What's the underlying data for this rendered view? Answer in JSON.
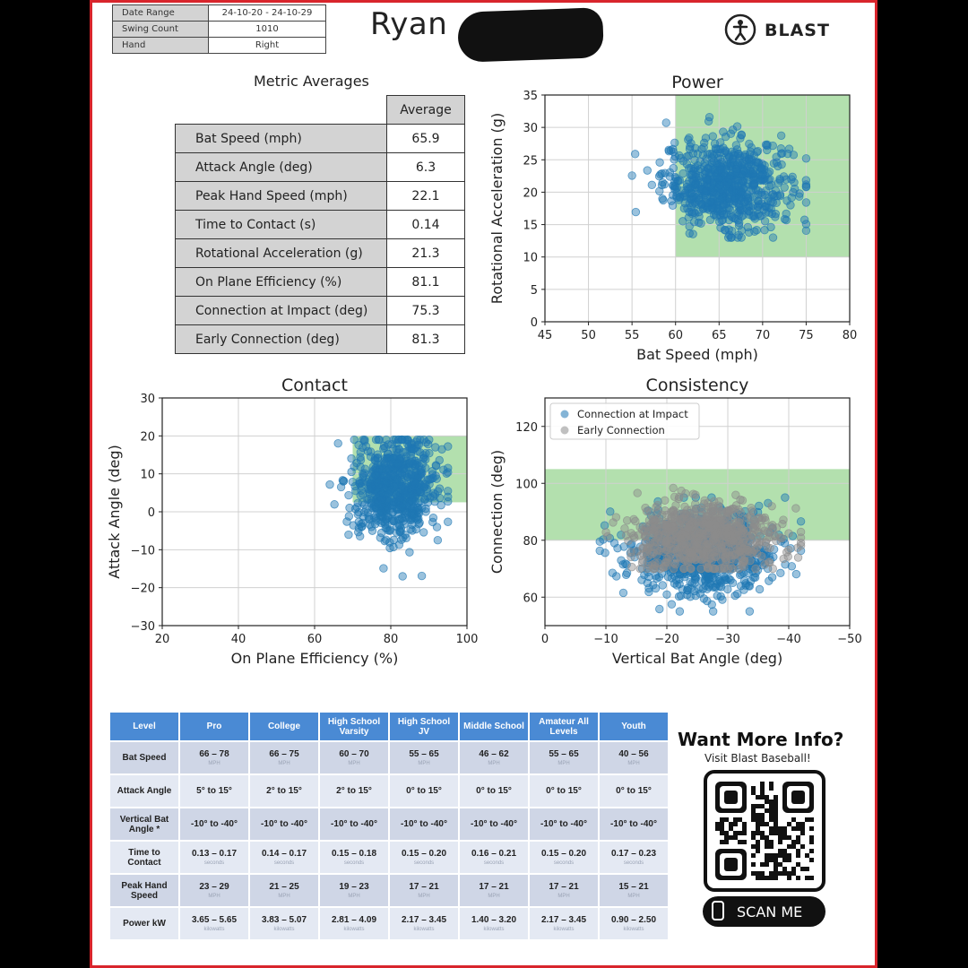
{
  "session": {
    "rows": [
      {
        "label": "Date Range",
        "value": "24-10-20 - 24-10-29"
      },
      {
        "label": "Swing Count",
        "value": "1010"
      },
      {
        "label": "Hand",
        "value": "Right"
      }
    ],
    "player_name": "Ryan",
    "brand": "BLAST"
  },
  "metrics": {
    "title": "Metric Averages",
    "column": "Average",
    "rows": [
      {
        "label": "Bat Speed (mph)",
        "value": "65.9"
      },
      {
        "label": "Attack Angle (deg)",
        "value": "6.3"
      },
      {
        "label": "Peak Hand Speed (mph)",
        "value": "22.1"
      },
      {
        "label": "Time to Contact (s)",
        "value": "0.14"
      },
      {
        "label": "Rotational Acceleration (g)",
        "value": "21.3"
      },
      {
        "label": "On Plane Efficiency (%)",
        "value": "81.1"
      },
      {
        "label": "Connection at Impact (deg)",
        "value": "75.3"
      },
      {
        "label": "Early Connection (deg)",
        "value": "81.3"
      }
    ]
  },
  "chart_data": [
    {
      "type": "scatter",
      "title": "Power",
      "xlabel": "Bat Speed (mph)",
      "ylabel": "Rotational Acceleration (g)",
      "xlim": [
        45,
        80
      ],
      "ylim": [
        0,
        35
      ],
      "xticks": [
        45,
        50,
        55,
        60,
        65,
        70,
        75,
        80
      ],
      "yticks": [
        0,
        5,
        10,
        15,
        20,
        25,
        30,
        35
      ],
      "grid": true,
      "target_zone": {
        "x": [
          60,
          80
        ],
        "y": [
          10,
          35
        ]
      },
      "series": [
        {
          "point_count": 1010,
          "center": {
            "x": 65.9,
            "y": 21.3
          },
          "x_range": [
            55,
            75
          ],
          "y_range": [
            13,
            32
          ]
        }
      ]
    },
    {
      "type": "scatter",
      "title": "Contact",
      "xlabel": "On Plane Efficiency (%)",
      "ylabel": "Attack Angle (deg)",
      "xlim": [
        20,
        100
      ],
      "ylim": [
        -30,
        30
      ],
      "xticks": [
        20,
        40,
        60,
        80,
        100
      ],
      "yticks": [
        -30,
        -20,
        -10,
        0,
        10,
        20,
        30
      ],
      "grid": true,
      "target_zone": {
        "x": [
          70,
          100
        ],
        "y": [
          2.5,
          20
        ]
      },
      "series": [
        {
          "point_count": 1010,
          "center": {
            "x": 81.1,
            "y": 6.3
          },
          "x_range": [
            64,
            95
          ],
          "y_range": [
            -17,
            19
          ]
        }
      ]
    },
    {
      "type": "scatter",
      "title": "Consistency",
      "xlabel": "Vertical Bat Angle (deg)",
      "ylabel": "Connection (deg)",
      "xlim": [
        0,
        -50
      ],
      "ylim": [
        50,
        130
      ],
      "xticks": [
        0,
        -10,
        -20,
        -30,
        -40,
        -50
      ],
      "yticks": [
        60,
        80,
        100,
        120
      ],
      "grid": true,
      "legend": "top-left",
      "target_zone": {
        "x": [
          0,
          -50
        ],
        "y": [
          80,
          105
        ]
      },
      "series": [
        {
          "name": "Connection at Impact",
          "color": "#1f77b4",
          "point_count": 1010,
          "center": {
            "x": -26,
            "y": 75.3
          },
          "x_range": [
            -9,
            -42
          ],
          "y_range": [
            55,
            95
          ]
        },
        {
          "name": "Early Connection",
          "color": "#8c8c8c",
          "point_count": 1010,
          "center": {
            "x": -26,
            "y": 81.3
          },
          "x_range": [
            -9,
            -42
          ],
          "y_range": [
            70,
            103
          ]
        }
      ]
    }
  ],
  "levels_table": {
    "columns": [
      "Level",
      "Pro",
      "College",
      "High School Varsity",
      "High School JV",
      "Middle School",
      "Amateur All Levels",
      "Youth"
    ],
    "rows": [
      {
        "label": "Bat Speed",
        "unit": "MPH",
        "values": [
          "66 – 78",
          "66 – 75",
          "60 – 70",
          "55 – 65",
          "46 – 62",
          "55 – 65",
          "40 – 56"
        ]
      },
      {
        "label": "Attack Angle",
        "unit": "",
        "values": [
          "5° to 15°",
          "2° to 15°",
          "2° to 15°",
          "0° to 15°",
          "0° to 15°",
          "0° to 15°",
          "0° to 15°"
        ]
      },
      {
        "label": "Vertical Bat Angle *",
        "unit": "",
        "values": [
          "-10° to -40°",
          "-10° to -40°",
          "-10° to -40°",
          "-10° to -40°",
          "-10° to -40°",
          "-10° to -40°",
          "-10° to -40°"
        ]
      },
      {
        "label": "Time to Contact",
        "unit": "seconds",
        "values": [
          "0.13 – 0.17",
          "0.14 – 0.17",
          "0.15 – 0.18",
          "0.15 – 0.20",
          "0.16 – 0.21",
          "0.15 – 0.20",
          "0.17 – 0.23"
        ]
      },
      {
        "label": "Peak Hand Speed",
        "unit": "MPH",
        "values": [
          "23 – 29",
          "21 – 25",
          "19 – 23",
          "17 – 21",
          "17 – 21",
          "17 – 21",
          "15 – 21"
        ]
      },
      {
        "label": "Power kW",
        "unit": "kilowatts",
        "values": [
          "3.65 – 5.65",
          "3.83 – 5.07",
          "2.81 – 4.09",
          "2.17 – 3.45",
          "1.40 – 3.20",
          "2.17 – 3.45",
          "0.90 – 2.50"
        ]
      }
    ]
  },
  "cta": {
    "title": "Want More Info?",
    "subtitle": "Visit Blast Baseball!",
    "button": "SCAN ME"
  },
  "colors": {
    "frame": "#d8252c",
    "zone": "#a6dba0",
    "point": "#1f77b4",
    "early_point": "#8c8c8c",
    "table_header": "#4a8ad4"
  }
}
